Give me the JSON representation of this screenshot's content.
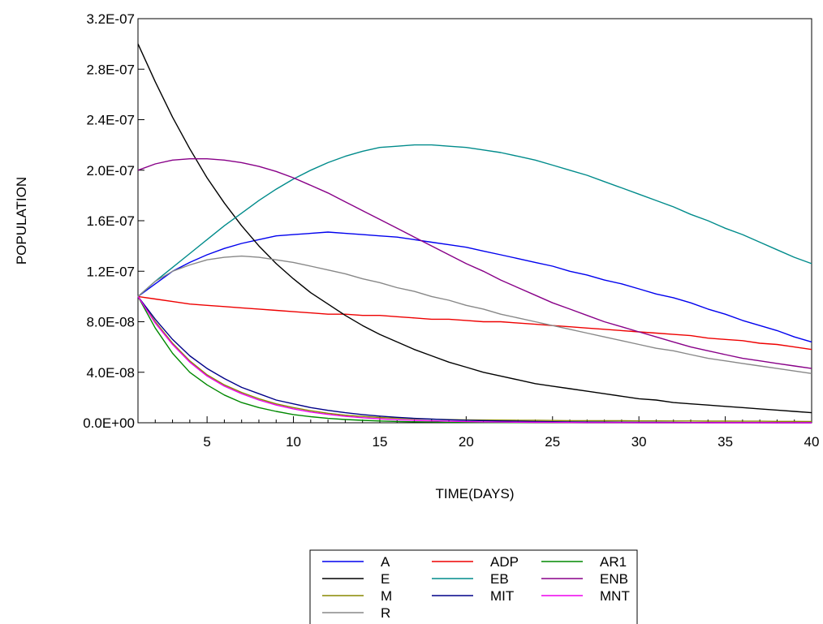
{
  "chart_data": {
    "type": "line",
    "xlabel": "TIME(DAYS)",
    "ylabel": "POPULATION",
    "xlim": [
      1,
      40
    ],
    "ylim": [
      0,
      3.2e-07
    ],
    "x_tick_values": [
      5,
      10,
      15,
      20,
      25,
      30,
      35,
      40
    ],
    "x_tick_labels": [
      "5",
      "10",
      "15",
      "20",
      "25",
      "30",
      "35",
      "40"
    ],
    "y_tick_values": [
      0,
      4e-08,
      8e-08,
      1.2e-07,
      1.6e-07,
      2e-07,
      2.4e-07,
      2.8e-07,
      3.2e-07
    ],
    "y_tick_labels": [
      "0.0E+00",
      "4.0E-08",
      "8.0E-08",
      "1.2E-07",
      "1.6E-07",
      "2.0E-07",
      "2.4E-07",
      "2.8E-07",
      "3.2E-07"
    ],
    "grid": false,
    "legend_position": "bottom-center",
    "x": [
      1,
      2,
      3,
      4,
      5,
      6,
      7,
      8,
      9,
      10,
      11,
      12,
      13,
      14,
      15,
      16,
      17,
      18,
      19,
      20,
      21,
      22,
      23,
      24,
      25,
      26,
      27,
      28,
      29,
      30,
      31,
      32,
      33,
      34,
      35,
      36,
      37,
      38,
      39,
      40
    ],
    "series": [
      {
        "name": "A",
        "color": "#0000ee",
        "values": [
          1e-07,
          1.1e-07,
          1.2e-07,
          1.27e-07,
          1.33e-07,
          1.38e-07,
          1.42e-07,
          1.45e-07,
          1.48e-07,
          1.49e-07,
          1.5e-07,
          1.51e-07,
          1.5e-07,
          1.49e-07,
          1.48e-07,
          1.47e-07,
          1.45e-07,
          1.43e-07,
          1.41e-07,
          1.39e-07,
          1.36e-07,
          1.33e-07,
          1.3e-07,
          1.27e-07,
          1.24e-07,
          1.2e-07,
          1.17e-07,
          1.13e-07,
          1.1e-07,
          1.06e-07,
          1.02e-07,
          9.9e-08,
          9.5e-08,
          9e-08,
          8.6e-08,
          8.1e-08,
          7.7e-08,
          7.3e-08,
          6.8e-08,
          6.4e-08
        ]
      },
      {
        "name": "ADP",
        "color": "#ee0000",
        "values": [
          1e-07,
          9.8e-08,
          9.6e-08,
          9.4e-08,
          9.3e-08,
          9.2e-08,
          9.1e-08,
          9e-08,
          8.9e-08,
          8.8e-08,
          8.7e-08,
          8.6e-08,
          8.6e-08,
          8.5e-08,
          8.5e-08,
          8.4e-08,
          8.3e-08,
          8.2e-08,
          8.2e-08,
          8.1e-08,
          8e-08,
          8e-08,
          7.9e-08,
          7.8e-08,
          7.7e-08,
          7.6e-08,
          7.5e-08,
          7.4e-08,
          7.3e-08,
          7.2e-08,
          7.1e-08,
          7e-08,
          6.9e-08,
          6.7e-08,
          6.6e-08,
          6.5e-08,
          6.3e-08,
          6.2e-08,
          6e-08,
          5.8e-08
        ]
      },
      {
        "name": "AR1",
        "color": "#008800",
        "values": [
          1e-07,
          7.5e-08,
          5.5e-08,
          4e-08,
          3e-08,
          2.2e-08,
          1.6e-08,
          1.2e-08,
          9e-09,
          6.5e-09,
          4.8e-09,
          3.5e-09,
          2.6e-09,
          1.9e-09,
          1.4e-09,
          1e-09,
          8e-10,
          6e-10,
          4e-10,
          3e-10,
          2e-10,
          1.5e-10,
          1.1e-10,
          8e-11,
          6e-11,
          4e-11,
          3e-11,
          2e-11,
          1.5e-11,
          1e-11,
          8e-12,
          6e-12,
          4e-12,
          3e-12,
          2e-12,
          1.5e-12,
          1e-12,
          8e-13,
          6e-13,
          4e-13
        ]
      },
      {
        "name": "E",
        "color": "#000000",
        "values": [
          3e-07,
          2.7e-07,
          2.42e-07,
          2.17e-07,
          1.94e-07,
          1.74e-07,
          1.56e-07,
          1.4e-07,
          1.26e-07,
          1.14e-07,
          1.03e-07,
          9.4e-08,
          8.5e-08,
          7.7e-08,
          7e-08,
          6.4e-08,
          5.8e-08,
          5.3e-08,
          4.8e-08,
          4.4e-08,
          4e-08,
          3.7e-08,
          3.4e-08,
          3.1e-08,
          2.9e-08,
          2.7e-08,
          2.5e-08,
          2.3e-08,
          2.1e-08,
          1.9e-08,
          1.8e-08,
          1.6e-08,
          1.5e-08,
          1.4e-08,
          1.3e-08,
          1.2e-08,
          1.1e-08,
          1e-08,
          9e-09,
          8e-09
        ]
      },
      {
        "name": "EB",
        "color": "#008b8b",
        "values": [
          1e-07,
          1.12e-07,
          1.23e-07,
          1.34e-07,
          1.45e-07,
          1.56e-07,
          1.66e-07,
          1.76e-07,
          1.85e-07,
          1.93e-07,
          2e-07,
          2.06e-07,
          2.11e-07,
          2.15e-07,
          2.18e-07,
          2.19e-07,
          2.2e-07,
          2.2e-07,
          2.19e-07,
          2.18e-07,
          2.16e-07,
          2.14e-07,
          2.11e-07,
          2.08e-07,
          2.04e-07,
          2e-07,
          1.96e-07,
          1.91e-07,
          1.86e-07,
          1.81e-07,
          1.76e-07,
          1.71e-07,
          1.65e-07,
          1.6e-07,
          1.54e-07,
          1.49e-07,
          1.43e-07,
          1.37e-07,
          1.31e-07,
          1.26e-07
        ]
      },
      {
        "name": "ENB",
        "color": "#880088",
        "values": [
          2e-07,
          2.05e-07,
          2.08e-07,
          2.09e-07,
          2.09e-07,
          2.08e-07,
          2.06e-07,
          2.03e-07,
          1.99e-07,
          1.94e-07,
          1.88e-07,
          1.82e-07,
          1.75e-07,
          1.68e-07,
          1.61e-07,
          1.54e-07,
          1.47e-07,
          1.4e-07,
          1.33e-07,
          1.26e-07,
          1.2e-07,
          1.13e-07,
          1.07e-07,
          1.01e-07,
          9.5e-08,
          9e-08,
          8.5e-08,
          8e-08,
          7.6e-08,
          7.2e-08,
          6.8e-08,
          6.4e-08,
          6e-08,
          5.7e-08,
          5.4e-08,
          5.1e-08,
          4.9e-08,
          4.7e-08,
          4.5e-08,
          4.3e-08
        ]
      },
      {
        "name": "M",
        "color": "#888800",
        "values": [
          1e-07,
          8e-08,
          6.3e-08,
          4.9e-08,
          3.8e-08,
          3e-08,
          2.4e-08,
          1.9e-08,
          1.5e-08,
          1.2e-08,
          9.5e-09,
          7.5e-09,
          6e-09,
          5e-09,
          4.2e-09,
          3.6e-09,
          3.1e-09,
          2.8e-09,
          2.5e-09,
          2.3e-09,
          2.2e-09,
          2.1e-09,
          2e-09,
          1.9e-09,
          1.8e-09,
          1.7e-09,
          1.7e-09,
          1.6e-09,
          1.6e-09,
          1.5e-09,
          1.5e-09,
          1.4e-09,
          1.4e-09,
          1.3e-09,
          1.3e-09,
          1.2e-09,
          1.2e-09,
          1.1e-09,
          1.1e-09,
          1e-09
        ]
      },
      {
        "name": "MIT",
        "color": "#000088",
        "values": [
          1e-07,
          8.2e-08,
          6.6e-08,
          5.3e-08,
          4.3e-08,
          3.5e-08,
          2.8e-08,
          2.3e-08,
          1.8e-08,
          1.5e-08,
          1.2e-08,
          9.8e-09,
          8e-09,
          6.5e-09,
          5.3e-09,
          4.3e-09,
          3.5e-09,
          2.9e-09,
          2.4e-09,
          2e-09,
          1.7e-09,
          1.4e-09,
          1.2e-09,
          1e-09,
          8.5e-10,
          7e-10,
          6e-10,
          5e-10,
          4.2e-10,
          3.5e-10,
          3e-10,
          2.5e-10,
          2.1e-10,
          1.8e-10,
          1.5e-10,
          1.3e-10,
          1.1e-10,
          9e-11,
          8e-11,
          7e-11
        ]
      },
      {
        "name": "MNT",
        "color": "#ee00ee",
        "values": [
          1e-07,
          7.9e-08,
          6.2e-08,
          4.8e-08,
          3.7e-08,
          2.9e-08,
          2.3e-08,
          1.8e-08,
          1.4e-08,
          1.1e-08,
          8.5e-09,
          6.6e-09,
          5.1e-09,
          4e-09,
          3.1e-09,
          2.4e-09,
          1.9e-09,
          1.5e-09,
          1.2e-09,
          9e-10,
          7e-10,
          5.5e-10,
          4.3e-10,
          3.4e-10,
          2.6e-10,
          2e-10,
          1.6e-10,
          1.2e-10,
          1e-10,
          8e-11,
          6e-11,
          5e-11,
          4e-11,
          3e-11,
          2.4e-11,
          1.9e-11,
          1.5e-11,
          1.2e-11,
          9e-12,
          7e-12
        ]
      },
      {
        "name": "R",
        "color": "#888888",
        "values": [
          1e-07,
          1.12e-07,
          1.2e-07,
          1.25e-07,
          1.29e-07,
          1.31e-07,
          1.32e-07,
          1.31e-07,
          1.29e-07,
          1.27e-07,
          1.24e-07,
          1.21e-07,
          1.18e-07,
          1.14e-07,
          1.11e-07,
          1.07e-07,
          1.04e-07,
          1e-07,
          9.7e-08,
          9.3e-08,
          9e-08,
          8.6e-08,
          8.3e-08,
          8e-08,
          7.7e-08,
          7.4e-08,
          7.1e-08,
          6.8e-08,
          6.5e-08,
          6.2e-08,
          5.9e-08,
          5.7e-08,
          5.4e-08,
          5.1e-08,
          4.9e-08,
          4.7e-08,
          4.5e-08,
          4.3e-08,
          4.1e-08,
          3.9e-08
        ]
      }
    ]
  }
}
